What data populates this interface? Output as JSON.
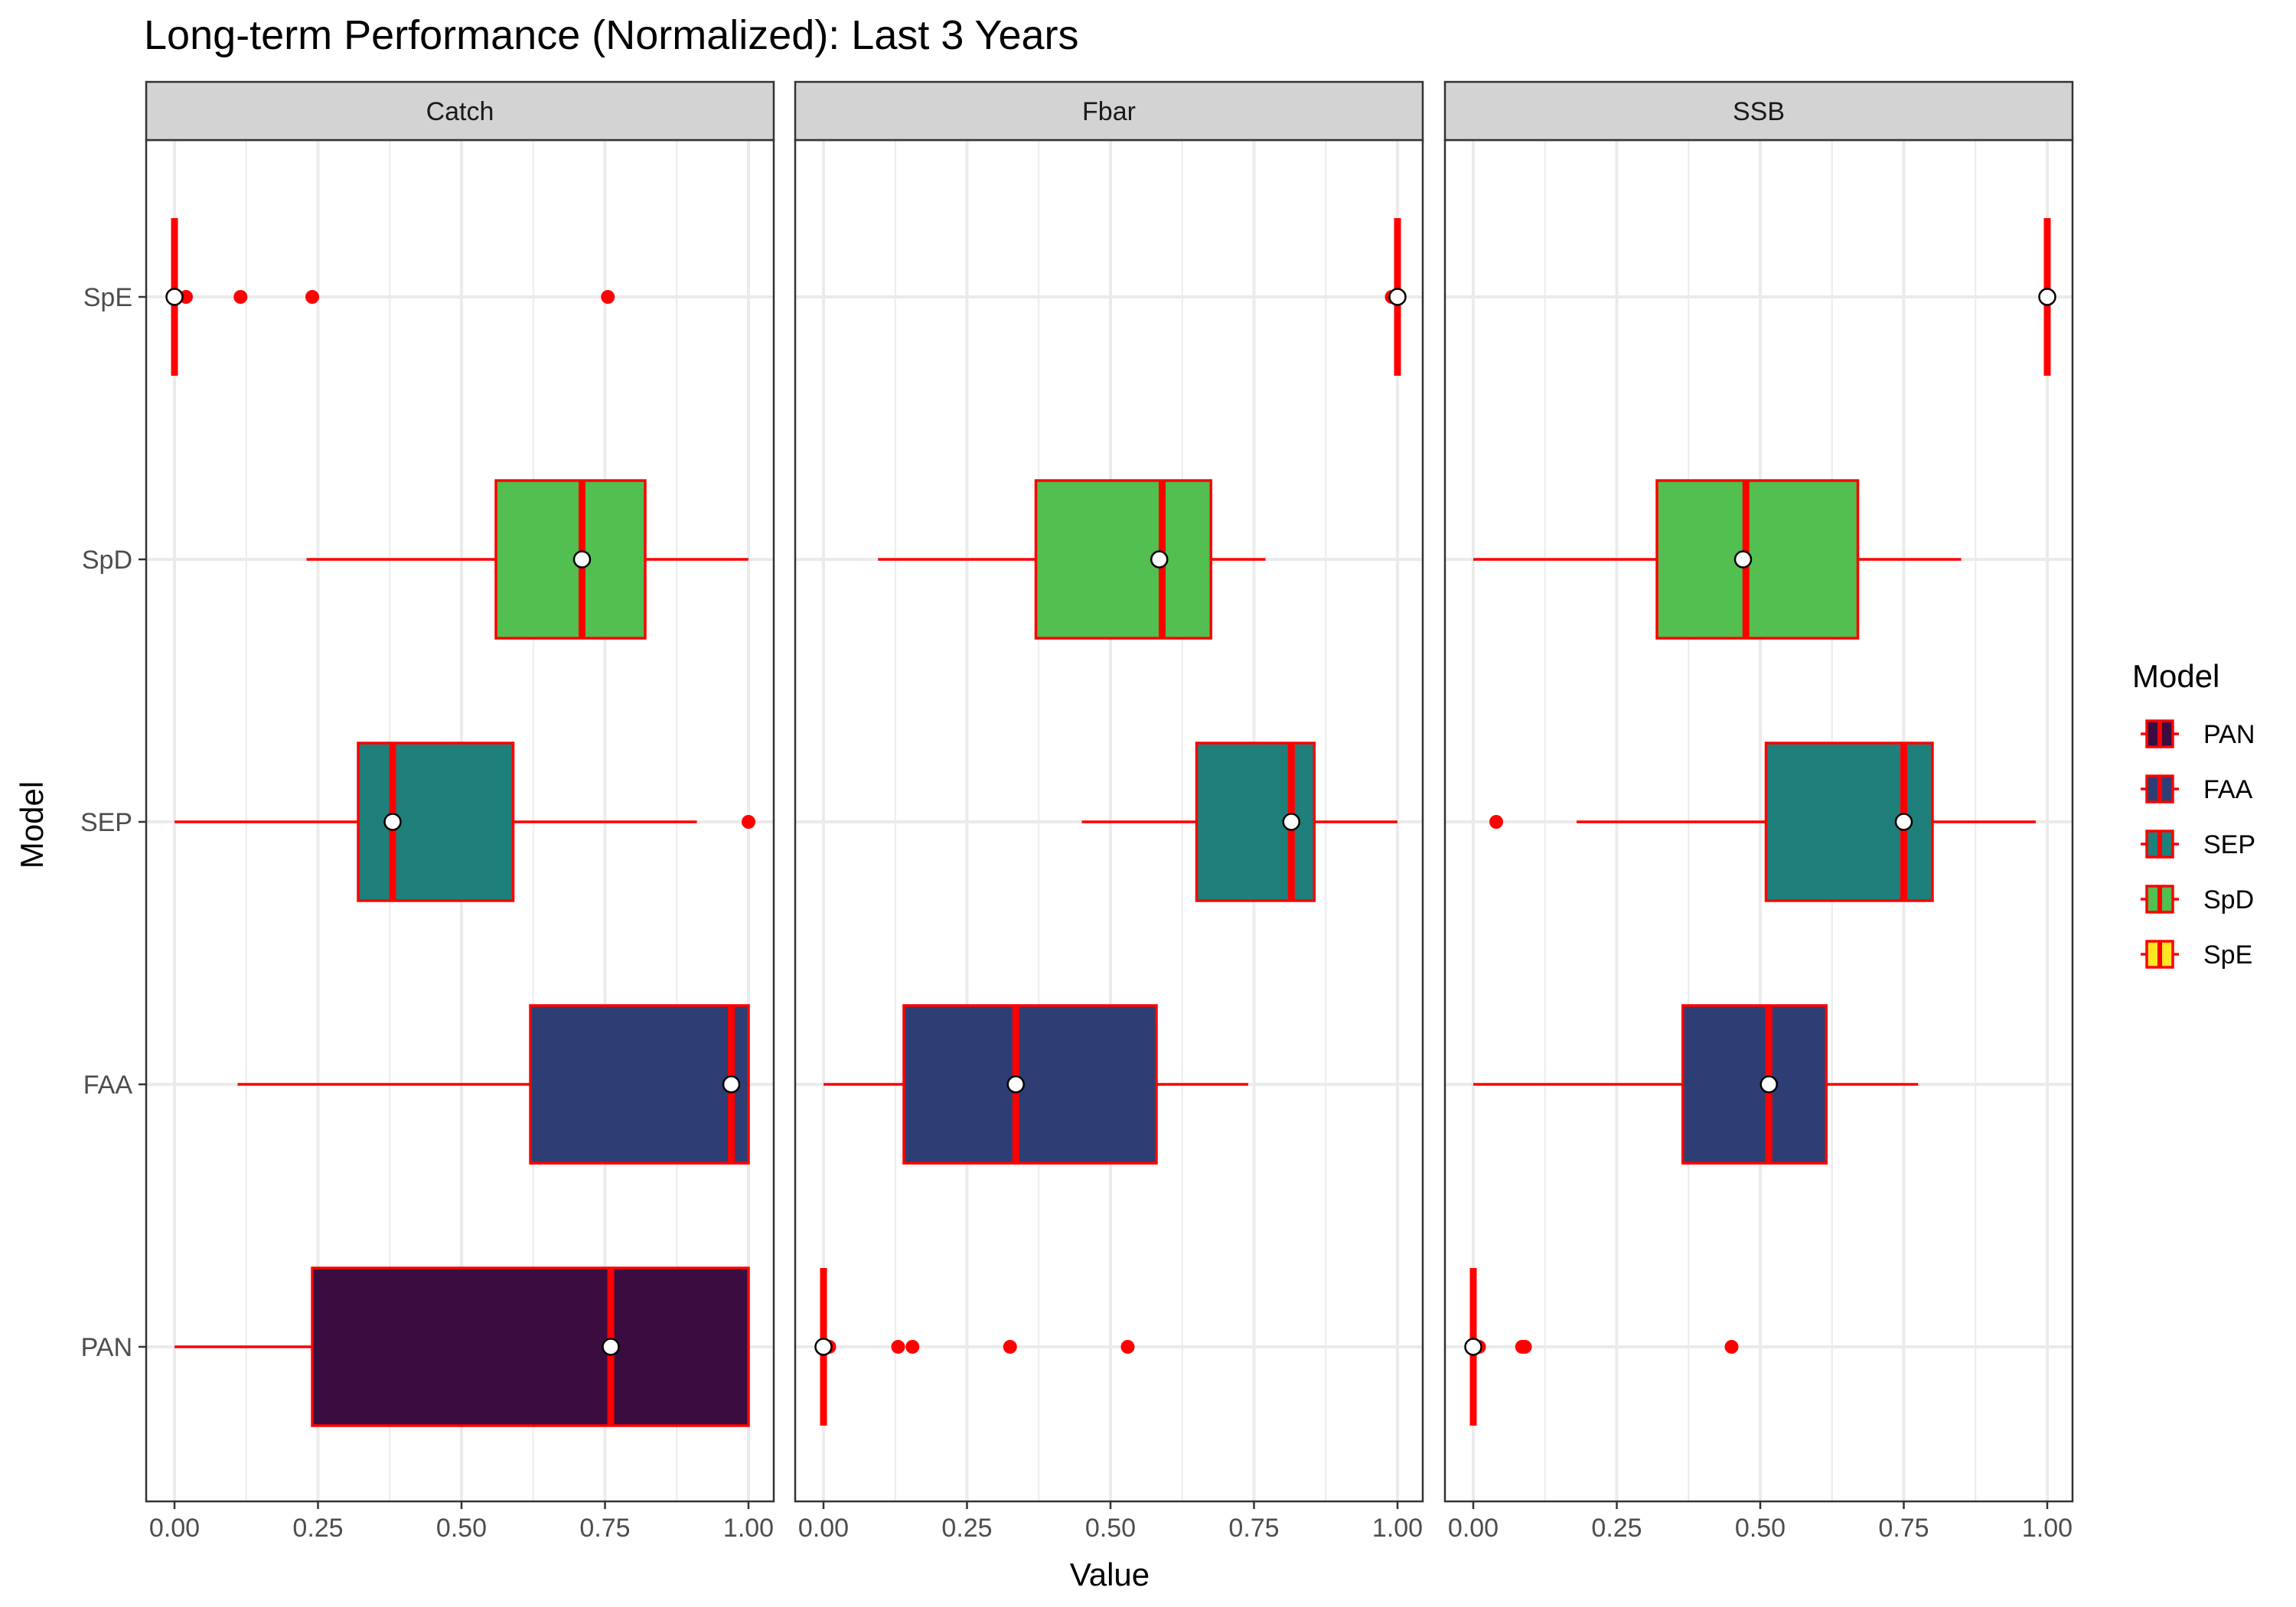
{
  "chart_data": {
    "type": "boxplot",
    "title": "Long-term Performance (Normalized): Last 3 Years",
    "xlabel": "Value",
    "ylabel": "Model",
    "xlim": [
      0,
      1
    ],
    "x_ticks": [
      "0.00",
      "0.25",
      "0.50",
      "0.75",
      "1.00"
    ],
    "categories": [
      "PAN",
      "FAA",
      "SEP",
      "SpD",
      "SpE"
    ],
    "legend": {
      "title": "Model",
      "position": "right",
      "entries": [
        "PAN",
        "FAA",
        "SEP",
        "SpD",
        "SpE"
      ]
    },
    "colors": {
      "PAN": "#3b0c40",
      "FAA": "#2e3e74",
      "SEP": "#1f7f7a",
      "SpD": "#52bf50",
      "SpE": "#fde725",
      "outline": "#ff0000",
      "strip": "#d3d3d3",
      "grid": "#ebebeb"
    },
    "grid": true,
    "panels": [
      {
        "label": "Catch",
        "boxes": [
          {
            "model": "PAN",
            "lower_whisker": 0.0,
            "q1": 0.24,
            "median": 0.76,
            "q3": 1.0,
            "upper_whisker": 1.0,
            "mean": 0.76,
            "outliers": []
          },
          {
            "model": "FAA",
            "lower_whisker": 0.11,
            "q1": 0.62,
            "median": 0.97,
            "q3": 1.0,
            "upper_whisker": 1.0,
            "mean": 0.97,
            "outliers": []
          },
          {
            "model": "SEP",
            "lower_whisker": 0.0,
            "q1": 0.32,
            "median": 0.38,
            "q3": 0.59,
            "upper_whisker": 0.91,
            "mean": 0.38,
            "outliers": [
              1.0
            ]
          },
          {
            "model": "SpD",
            "lower_whisker": 0.23,
            "q1": 0.56,
            "median": 0.71,
            "q3": 0.82,
            "upper_whisker": 1.0,
            "mean": 0.71,
            "outliers": []
          },
          {
            "model": "SpE",
            "lower_whisker": 0.0,
            "q1": 0.0,
            "median": 0.0,
            "q3": 0.0,
            "upper_whisker": 0.0,
            "mean": 0.0,
            "outliers": [
              0.02,
              0.115,
              0.24,
              0.755
            ]
          }
        ]
      },
      {
        "label": "Fbar",
        "boxes": [
          {
            "model": "PAN",
            "lower_whisker": 0.0,
            "q1": 0.0,
            "median": 0.0,
            "q3": 0.0,
            "upper_whisker": 0.0,
            "mean": 0.0,
            "outliers": [
              0.01,
              0.13,
              0.155,
              0.325,
              0.53
            ]
          },
          {
            "model": "FAA",
            "lower_whisker": 0.0,
            "q1": 0.14,
            "median": 0.335,
            "q3": 0.58,
            "upper_whisker": 0.74,
            "mean": 0.335,
            "outliers": []
          },
          {
            "model": "SEP",
            "lower_whisker": 0.45,
            "q1": 0.65,
            "median": 0.815,
            "q3": 0.855,
            "upper_whisker": 1.0,
            "mean": 0.815,
            "outliers": []
          },
          {
            "model": "SpD",
            "lower_whisker": 0.095,
            "q1": 0.37,
            "median": 0.59,
            "q3": 0.675,
            "upper_whisker": 0.77,
            "mean": 0.585,
            "outliers": []
          },
          {
            "model": "SpE",
            "lower_whisker": 1.0,
            "q1": 1.0,
            "median": 1.0,
            "q3": 1.0,
            "upper_whisker": 1.0,
            "mean": 1.0,
            "outliers": [
              0.99
            ]
          }
        ]
      },
      {
        "label": "SSB",
        "boxes": [
          {
            "model": "PAN",
            "lower_whisker": 0.0,
            "q1": 0.0,
            "median": 0.0,
            "q3": 0.0,
            "upper_whisker": 0.0,
            "mean": 0.0,
            "outliers": [
              0.01,
              0.085,
              0.09,
              0.45
            ]
          },
          {
            "model": "FAA",
            "lower_whisker": 0.0,
            "q1": 0.365,
            "median": 0.515,
            "q3": 0.615,
            "upper_whisker": 0.775,
            "mean": 0.515,
            "outliers": []
          },
          {
            "model": "SEP",
            "lower_whisker": 0.18,
            "q1": 0.51,
            "median": 0.75,
            "q3": 0.8,
            "upper_whisker": 0.98,
            "mean": 0.75,
            "outliers": [
              0.04
            ]
          },
          {
            "model": "SpD",
            "lower_whisker": 0.0,
            "q1": 0.32,
            "median": 0.475,
            "q3": 0.67,
            "upper_whisker": 0.85,
            "mean": 0.47,
            "outliers": []
          },
          {
            "model": "SpE",
            "lower_whisker": 1.0,
            "q1": 1.0,
            "median": 1.0,
            "q3": 1.0,
            "upper_whisker": 1.0,
            "mean": 1.0,
            "outliers": []
          }
        ]
      }
    ]
  }
}
